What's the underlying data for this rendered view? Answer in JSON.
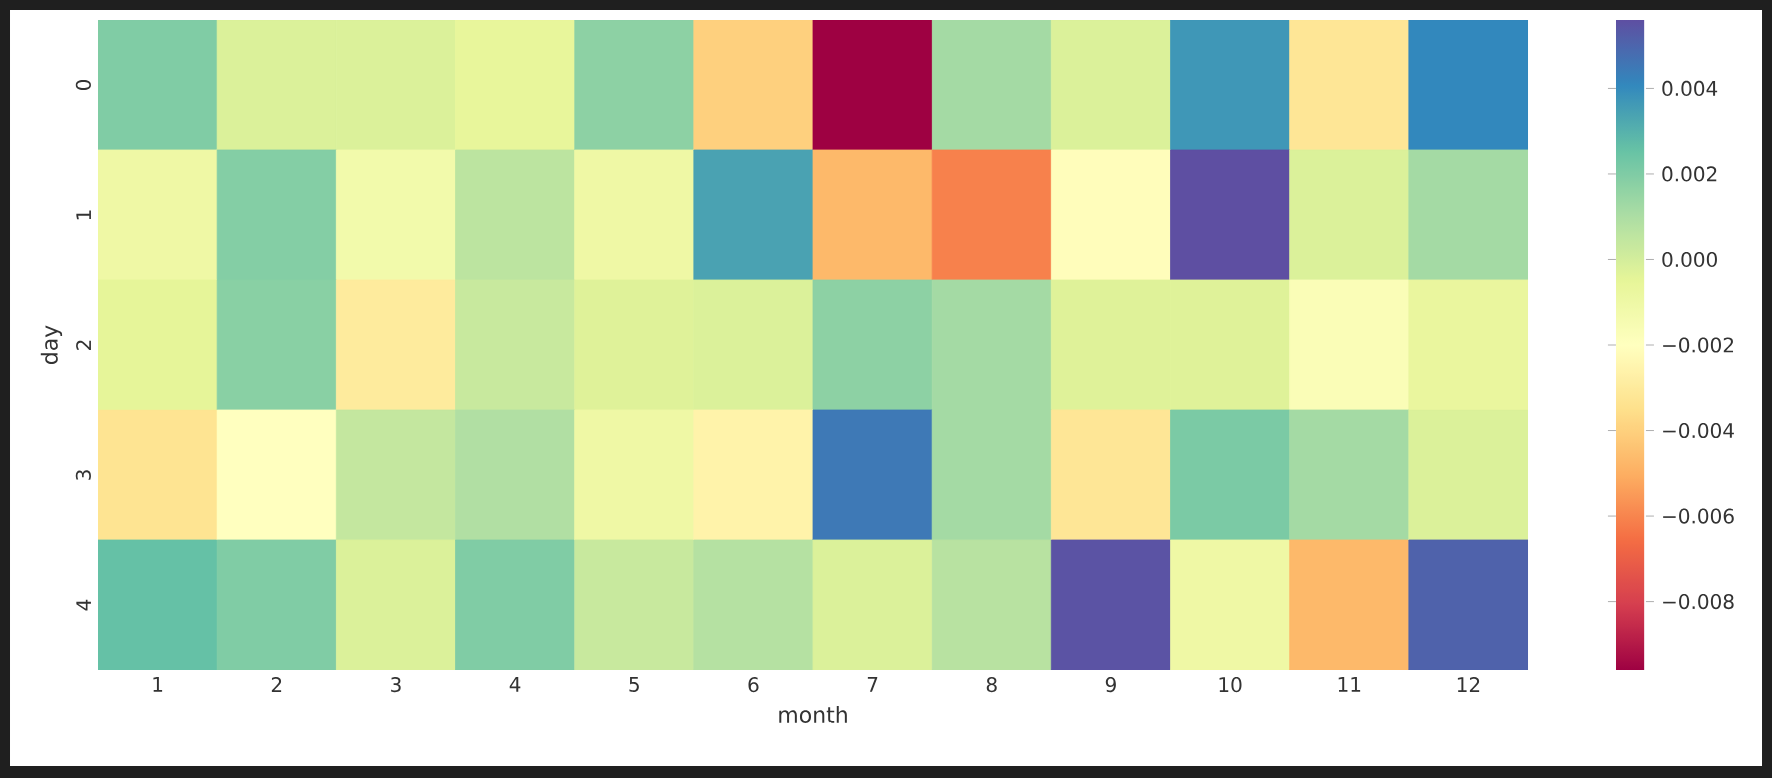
{
  "chart_data": {
    "type": "heatmap",
    "xlabel": "month",
    "ylabel": "day",
    "categories": [
      "1",
      "2",
      "3",
      "4",
      "5",
      "6",
      "7",
      "8",
      "9",
      "10",
      "11",
      "12"
    ],
    "y_categories": [
      "0",
      "1",
      "2",
      "3",
      "4"
    ],
    "cells": [
      [
        0.002,
        -0.0002,
        -0.0002,
        -0.0006,
        0.0017,
        -0.004,
        -0.0096,
        0.0012,
        -0.0002,
        0.0037,
        -0.0032,
        0.0041
      ],
      [
        -0.001,
        0.0019,
        -0.0012,
        0.0006,
        -0.001,
        0.0034,
        -0.0047,
        -0.0061,
        -0.0021,
        0.0056,
        -0.0002,
        0.0012
      ],
      [
        -0.0005,
        0.0018,
        -0.003,
        0.0003,
        -0.0003,
        -0.0002,
        0.0017,
        0.0012,
        -0.0003,
        -0.0003,
        -0.0017,
        -0.0007
      ],
      [
        -0.0033,
        -0.002,
        0.0004,
        0.0009,
        -0.001,
        -0.0026,
        0.0045,
        0.0012,
        -0.0032,
        0.0021,
        0.0012,
        -0.0002
      ],
      [
        0.0026,
        0.002,
        -0.0002,
        0.002,
        0.0003,
        0.0008,
        -0.0002,
        0.0007,
        0.0055,
        -0.001,
        -0.0047,
        0.0051
      ]
    ],
    "clim": [
      -0.0096,
      0.0056
    ],
    "cticks": [
      {
        "value": -0.008,
        "label": "−0.008"
      },
      {
        "value": -0.006,
        "label": "−0.006"
      },
      {
        "value": -0.004,
        "label": "−0.004"
      },
      {
        "value": -0.002,
        "label": "−0.002"
      },
      {
        "value": 0.0,
        "label": "0.000"
      },
      {
        "value": 0.002,
        "label": "0.002"
      },
      {
        "value": 0.004,
        "label": "0.004"
      }
    ]
  }
}
